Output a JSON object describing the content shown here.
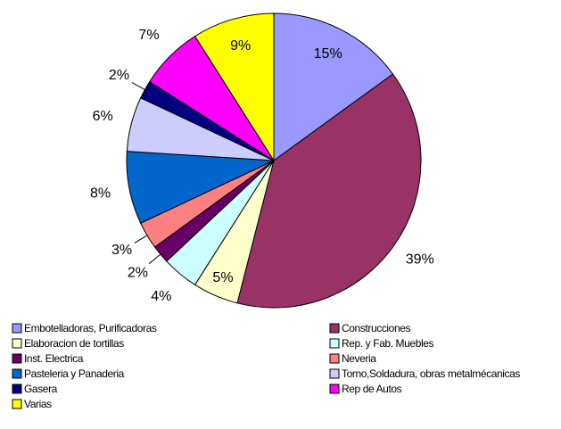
{
  "chart_data": {
    "type": "pie",
    "categories": [
      "Embotelladoras, Purificadoras",
      "Construcciones",
      "Elaboracion de tortillas",
      "Rep. y Fab. Muebles",
      "Inst. Electrica",
      "Neveria",
      "Pasteleria y Panaderia",
      "Torno,Soldadura, obras metalmécanicas",
      "Gasera",
      "Rep de Autos",
      "Varias"
    ],
    "values": [
      15,
      39,
      5,
      4,
      2,
      3,
      8,
      6,
      2,
      7,
      9
    ],
    "value_labels": [
      "15%",
      "39%",
      "5%",
      "4%",
      "2%",
      "3%",
      "8%",
      "6%",
      "2%",
      "7%",
      "9%"
    ],
    "colors": [
      "#9999ff",
      "#993366",
      "#ffffcc",
      "#ccffff",
      "#660066",
      "#ff8080",
      "#0066cc",
      "#ccccff",
      "#000080",
      "#ff00ff",
      "#ffff00"
    ],
    "legend": "bottom"
  }
}
